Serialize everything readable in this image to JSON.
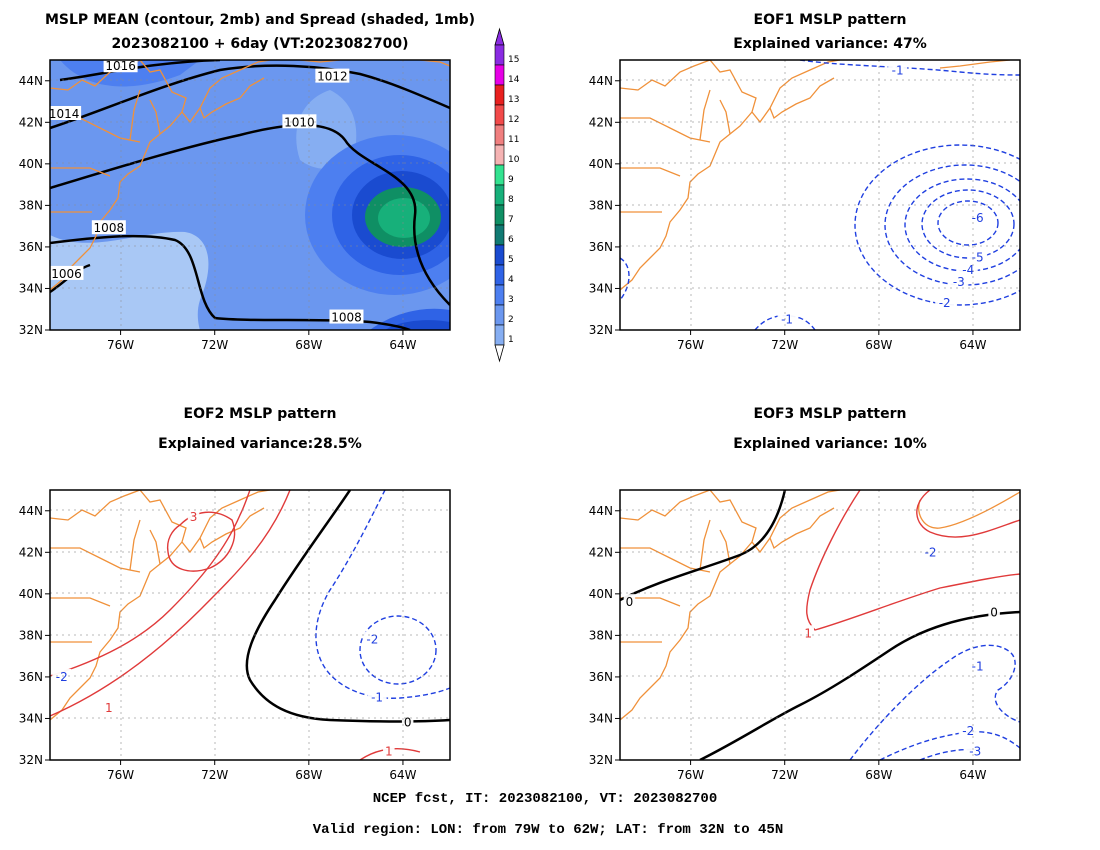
{
  "panels": [
    {
      "id": "mean",
      "title1": "MSLP MEAN (contour, 2mb) and Spread (shaded, 1mb)",
      "title2": "2023082100 + 6day (VT:2023082700)",
      "lon_range": [
        -79,
        -62
      ],
      "lat_range": [
        32,
        45
      ],
      "x_ticks": [
        "76W",
        "72W",
        "68W",
        "64W"
      ],
      "y_ticks": [
        "44N",
        "42N",
        "40N",
        "38N",
        "36N",
        "34N",
        "32N"
      ],
      "contour_labels": [
        {
          "text": "1016",
          "lon": -76.0,
          "lat": 44.7
        },
        {
          "text": "1014",
          "lon": -78.4,
          "lat": 42.4
        },
        {
          "text": "1012",
          "lon": -67.0,
          "lat": 44.2
        },
        {
          "text": "1010",
          "lon": -68.4,
          "lat": 42.0
        },
        {
          "text": "1008",
          "lon": -76.5,
          "lat": 36.9
        },
        {
          "text": "1006",
          "lon": -78.3,
          "lat": 34.7
        },
        {
          "text": "1008",
          "lon": -66.4,
          "lat": 32.6
        }
      ]
    },
    {
      "id": "eof1",
      "title1": "EOF1 MSLP pattern",
      "title2": "Explained variance: 47%",
      "x_ticks": [
        "76W",
        "72W",
        "68W",
        "64W"
      ],
      "y_ticks": [
        "44N",
        "42N",
        "40N",
        "38N",
        "36N",
        "34N",
        "32N"
      ],
      "contour_labels": [
        {
          "text": "-1",
          "lon": -67.2,
          "lat": 44.5
        },
        {
          "text": "-6",
          "lon": -63.8,
          "lat": 37.4
        },
        {
          "text": "-5",
          "lon": -63.8,
          "lat": 35.5
        },
        {
          "text": "-4",
          "lon": -64.2,
          "lat": 34.9
        },
        {
          "text": "-3",
          "lon": -64.6,
          "lat": 34.3
        },
        {
          "text": "-2",
          "lon": -65.2,
          "lat": 33.3
        },
        {
          "text": "-1",
          "lon": -71.9,
          "lat": 32.5
        }
      ]
    },
    {
      "id": "eof2",
      "title1": "EOF2 MSLP pattern",
      "title2": "Explained variance:28.5%",
      "x_ticks": [
        "76W",
        "72W",
        "68W",
        "64W"
      ],
      "y_ticks": [
        "44N",
        "42N",
        "40N",
        "38N",
        "36N",
        "34N",
        "32N"
      ],
      "contour_labels": [
        {
          "text": "3",
          "lon": -72.9,
          "lat": 43.7
        },
        {
          "text": "-2",
          "lon": -78.5,
          "lat": 36.0
        },
        {
          "text": "1",
          "lon": -76.5,
          "lat": 34.5
        },
        {
          "text": "0",
          "lon": -63.8,
          "lat": 33.8
        },
        {
          "text": "-1",
          "lon": -65.1,
          "lat": 35.0
        },
        {
          "text": "-2",
          "lon": -65.3,
          "lat": 37.8
        },
        {
          "text": "1",
          "lon": -64.6,
          "lat": 32.4
        }
      ]
    },
    {
      "id": "eof3",
      "title1": "EOF3 MSLP pattern",
      "title2": "Explained variance: 10%",
      "x_ticks": [
        "76W",
        "72W",
        "68W",
        "64W"
      ],
      "y_ticks": [
        "44N",
        "42N",
        "40N",
        "38N",
        "36N",
        "34N",
        "32N"
      ],
      "contour_labels": [
        {
          "text": "-2",
          "lon": -65.8,
          "lat": 42.0
        },
        {
          "text": "0",
          "lon": -78.6,
          "lat": 39.6
        },
        {
          "text": "1",
          "lon": -71.0,
          "lat": 38.1
        },
        {
          "text": "0",
          "lon": -63.1,
          "lat": 39.1
        },
        {
          "text": "-1",
          "lon": -63.8,
          "lat": 36.5
        },
        {
          "text": "-2",
          "lon": -64.2,
          "lat": 33.4
        },
        {
          "text": "-3",
          "lon": -63.9,
          "lat": 32.4
        }
      ]
    }
  ],
  "colorbar": {
    "labels": [
      "1",
      "2",
      "3",
      "4",
      "5",
      "6",
      "7",
      "8",
      "9",
      "10",
      "11",
      "12",
      "13",
      "14",
      "15"
    ],
    "colors": [
      "#a9c8f5",
      "#86aef2",
      "#6b97ef",
      "#4d7ff0",
      "#2f63e6",
      "#1a4bd0",
      "#117a73",
      "#0f8f64",
      "#17b07a",
      "#33e290",
      "#f5b3b3",
      "#f07f7f",
      "#f24a4a",
      "#e8201f",
      "#e600e6",
      "#8a2be2"
    ],
    "max_color": "#8a2be2"
  },
  "colors": {
    "coast": "#f0913a",
    "contour_black": "#000000",
    "contour_blue": "#1f3fe0",
    "contour_red": "#e03a3a",
    "grid": "#8c8c8c",
    "shade_light": "#a9c8f5",
    "shade_mid": "#6b97ef",
    "shade_dark": "#2f63e6",
    "shade_darker": "#1a4bd0",
    "shade_teal": "#0f8f64",
    "shade_green": "#17b07a"
  },
  "footer": {
    "line1": "NCEP fcst, IT: 2023082100, VT: 2023082700",
    "line2": "Valid region: LON: from 79W to 62W; LAT: from 32N to 45N"
  }
}
